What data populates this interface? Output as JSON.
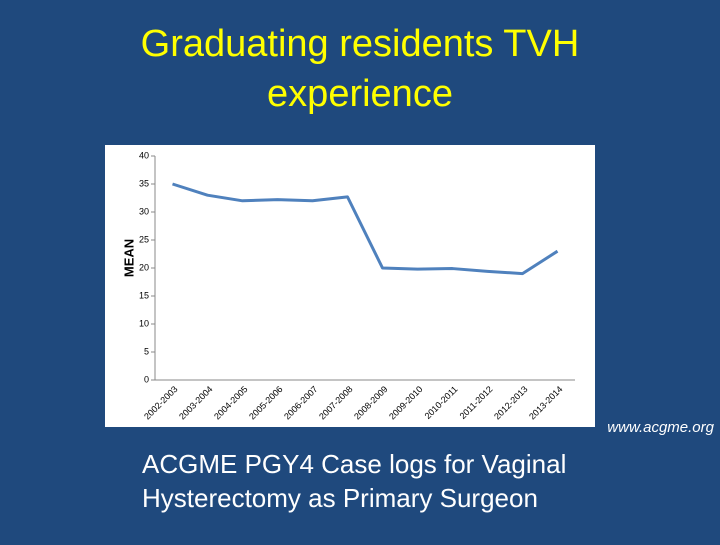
{
  "title": "Graduating residents TVH experience",
  "caption": [
    "ACGME PGY4 Case logs for Vaginal",
    "Hysterectomy as Primary Surgeon"
  ],
  "source": "www.acgme.org",
  "chart_data": {
    "type": "line",
    "ylabel": "MEAN",
    "categories": [
      "2002-2003",
      "2003-2004",
      "2004-2005",
      "2005-2006",
      "2006-2007",
      "2007-2008",
      "2008-2009",
      "2009-2010",
      "2010-2011",
      "2011-2012",
      "2012-2013",
      "2013-2014"
    ],
    "series": [
      {
        "name": "MEAN",
        "color": "#4f81bd",
        "values": [
          35,
          33,
          32,
          32.2,
          32,
          32.7,
          20,
          19.8,
          19.9,
          19.4,
          19,
          23
        ]
      }
    ],
    "ylim": [
      0,
      40
    ],
    "yticks": [
      0,
      5,
      10,
      15,
      20,
      25,
      30,
      35,
      40
    ],
    "grid": false
  }
}
